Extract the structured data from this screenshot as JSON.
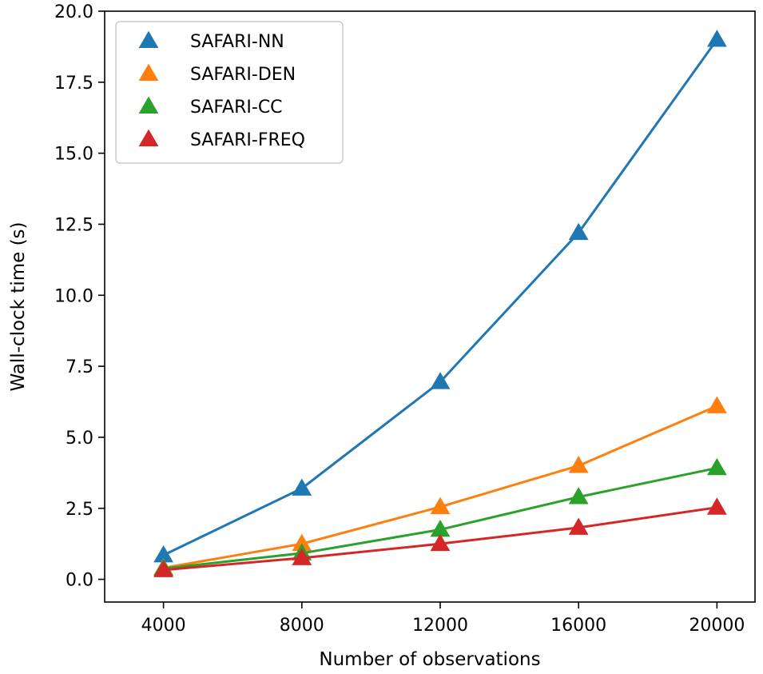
{
  "chart_data": {
    "type": "line",
    "title": "",
    "xlabel": "Number of observations",
    "ylabel": "Wall-clock time (s)",
    "x": [
      4000,
      8000,
      12000,
      16000,
      20000
    ],
    "x_ticks": [
      4000,
      8000,
      12000,
      16000,
      20000
    ],
    "x_tick_labels": [
      "4000",
      "8000",
      "12000",
      "16000",
      "20000"
    ],
    "xlim": [
      2300,
      21100
    ],
    "y_ticks": [
      0.0,
      2.5,
      5.0,
      7.5,
      10.0,
      12.5,
      15.0,
      17.5,
      20.0
    ],
    "y_tick_labels": [
      "0.0",
      "2.5",
      "5.0",
      "7.5",
      "10.0",
      "12.5",
      "15.0",
      "17.5",
      "20.0"
    ],
    "ylim": [
      -0.8,
      20.0
    ],
    "grid": false,
    "legend_position": "top-left",
    "marker": "triangle",
    "series": [
      {
        "name": "SAFARI-NN",
        "color": "#1f77b4",
        "values": [
          0.85,
          3.2,
          6.95,
          12.2,
          19.0
        ]
      },
      {
        "name": "SAFARI-DEN",
        "color": "#ff7f0e",
        "values": [
          0.4,
          1.25,
          2.55,
          4.0,
          6.1
        ]
      },
      {
        "name": "SAFARI-CC",
        "color": "#2ca02c",
        "values": [
          0.38,
          0.92,
          1.75,
          2.9,
          3.92
        ]
      },
      {
        "name": "SAFARI-FREQ",
        "color": "#d62728",
        "values": [
          0.33,
          0.75,
          1.25,
          1.82,
          2.53
        ]
      }
    ]
  }
}
